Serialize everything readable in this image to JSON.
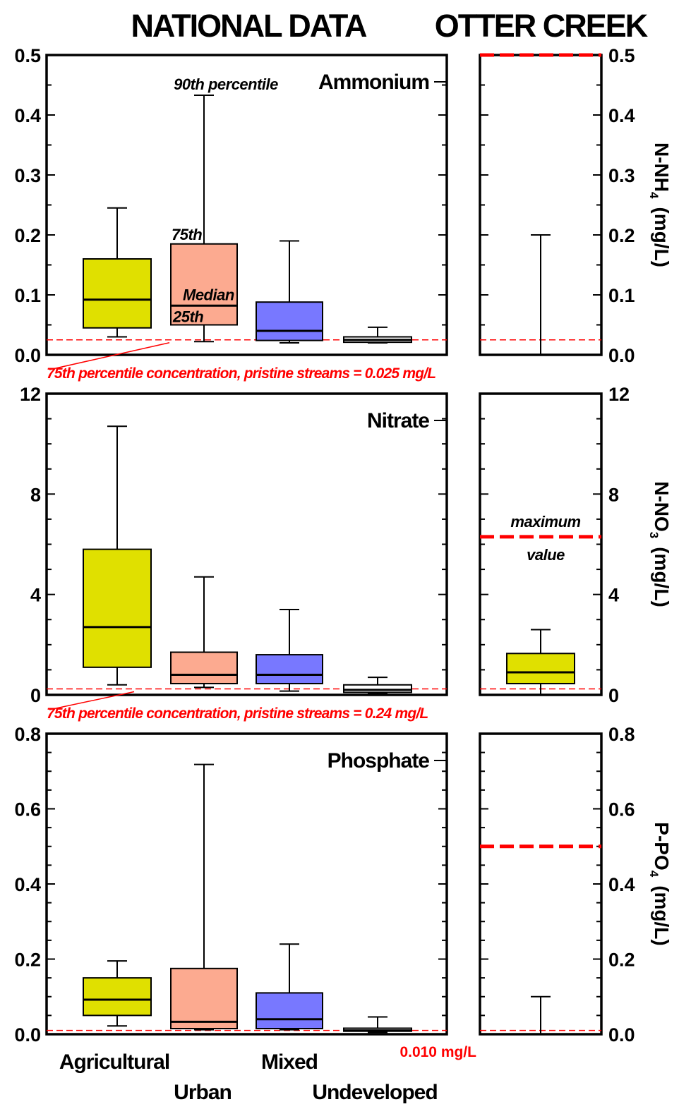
{
  "titles": {
    "national": "NATIONAL DATA",
    "otter": "OTTER CREEK"
  },
  "categories": [
    "Agricultural",
    "Urban",
    "Mixed",
    "Undeveloped"
  ],
  "colors": {
    "Agricultural": "#e0e000",
    "Urban": "#fcaa90",
    "Mixed": "#7878ff",
    "Undeveloped": "#ffffff",
    "reference": "#ff0000"
  },
  "annotations": {
    "p90": "90th percentile",
    "p75": "75th",
    "median": "Median",
    "p25": "25th",
    "maximum": "maximum",
    "value": "value"
  },
  "chart_data": [
    {
      "type": "box",
      "title": "Ammonium",
      "ylabel_main": "N-NH",
      "ylabel_sub": "4",
      "ylabel_unit": "(mg/L)",
      "ylim": [
        0,
        0.5
      ],
      "yticks": [
        "0.0",
        "0.1",
        "0.2",
        "0.3",
        "0.4",
        "0.5"
      ],
      "reference": {
        "value": 0.025,
        "label": "75th percentile concentration, pristine streams = 0.025 mg/L"
      },
      "national": [
        {
          "category": "Agricultural",
          "p10": 0.03,
          "p25": 0.045,
          "median": 0.092,
          "p75": 0.16,
          "p90": 0.245
        },
        {
          "category": "Urban",
          "p10": 0.022,
          "p25": 0.05,
          "median": 0.082,
          "p75": 0.185,
          "p90": 0.433
        },
        {
          "category": "Mixed",
          "p10": 0.02,
          "p25": 0.024,
          "median": 0.04,
          "p75": 0.088,
          "p90": 0.19
        },
        {
          "category": "Undeveloped",
          "p10": 0.02,
          "p25": 0.021,
          "median": 0.025,
          "p75": 0.03,
          "p90": 0.046
        }
      ],
      "otter_creek": {
        "whisker_min": 0,
        "whisker_max": 0.2,
        "maximum_value": 0.5
      }
    },
    {
      "type": "box",
      "title": "Nitrate",
      "ylabel_main": "N-NO",
      "ylabel_sub": "3",
      "ylabel_unit": "(mg/L)",
      "ylim": [
        0,
        12
      ],
      "yticks": [
        "0",
        "4",
        "8",
        "12"
      ],
      "reference": {
        "value": 0.24,
        "label": "75th percentile  concentration, pristine streams = 0.24 mg/L"
      },
      "national": [
        {
          "category": "Agricultural",
          "p10": 0.4,
          "p25": 1.1,
          "median": 2.7,
          "p75": 5.8,
          "p90": 10.7
        },
        {
          "category": "Urban",
          "p10": 0.3,
          "p25": 0.45,
          "median": 0.8,
          "p75": 1.7,
          "p90": 4.7
        },
        {
          "category": "Mixed",
          "p10": 0.15,
          "p25": 0.45,
          "median": 0.8,
          "p75": 1.6,
          "p90": 3.4
        },
        {
          "category": "Undeveloped",
          "p10": 0.05,
          "p25": 0.1,
          "median": 0.2,
          "p75": 0.4,
          "p90": 0.7
        }
      ],
      "otter_creek": {
        "p10": 0,
        "p25": 0.45,
        "median": 0.9,
        "p75": 1.65,
        "p90": 2.6,
        "maximum_value": 6.3
      }
    },
    {
      "type": "box",
      "title": "Phosphate",
      "ylabel_main": "P-PO",
      "ylabel_sub": "4",
      "ylabel_unit": "(mg/L)",
      "ylim": [
        0,
        0.8
      ],
      "yticks": [
        "0.0",
        "0.2",
        "0.4",
        "0.6",
        "0.8"
      ],
      "reference": {
        "value": 0.01,
        "label": "0.010 mg/L"
      },
      "national": [
        {
          "category": "Agricultural",
          "p10": 0.022,
          "p25": 0.05,
          "median": 0.092,
          "p75": 0.15,
          "p90": 0.195
        },
        {
          "category": "Urban",
          "p10": 0.012,
          "p25": 0.015,
          "median": 0.033,
          "p75": 0.175,
          "p90": 0.718
        },
        {
          "category": "Mixed",
          "p10": 0.012,
          "p25": 0.015,
          "median": 0.04,
          "p75": 0.11,
          "p90": 0.24
        },
        {
          "category": "Undeveloped",
          "p10": 0.005,
          "p25": 0.008,
          "median": 0.01,
          "p75": 0.016,
          "p90": 0.046
        }
      ],
      "otter_creek": {
        "whisker_min": 0,
        "whisker_max": 0.1,
        "maximum_value": 0.5
      }
    }
  ]
}
